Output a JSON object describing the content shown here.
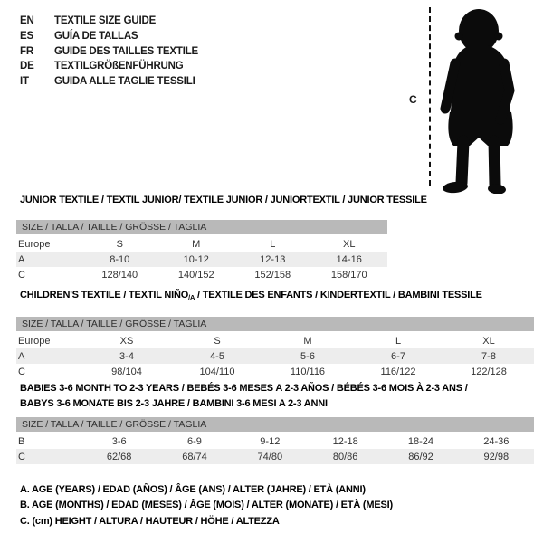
{
  "header": {
    "languages": [
      {
        "code": "EN",
        "label": "TEXTILE SIZE GUIDE"
      },
      {
        "code": "ES",
        "label": "GUÍA DE TALLAS"
      },
      {
        "code": "FR",
        "label": "GUIDE DES TAILLES TEXTILE"
      },
      {
        "code": "DE",
        "label": "TEXTILGRÖßENFÜHRUNG"
      },
      {
        "code": "IT",
        "label": "GUIDA ALLE TAGLIE TESSILI"
      }
    ]
  },
  "figure": {
    "measure_label": "C",
    "silhouette": "baby-toddler-standing"
  },
  "colors": {
    "size_bar": "#b9b9b9",
    "shaded_row": "#ededed",
    "text": "#1a1a1a"
  },
  "sections": [
    {
      "id": "junior",
      "title_lines": [
        [
          {
            "t": "JUNIOR TEXTILE / TEXTIL JUNIOR/ TEXTILE JUNIOR / JUNIORTEXTIL / JUNIOR TESSILE",
            "sub": false
          }
        ]
      ],
      "size_bar": "SIZE / TALLA / TAILLE / GRÖSSE / TAGLIA",
      "rows": [
        {
          "label": "Europe",
          "values": [
            "S",
            "M",
            "L",
            "XL"
          ],
          "shaded": false
        },
        {
          "label": "A",
          "values": [
            "8-10",
            "10-12",
            "12-13",
            "14-16"
          ],
          "shaded": true
        },
        {
          "label": "C",
          "values": [
            "128/140",
            "140/152",
            "152/158",
            "158/170"
          ],
          "shaded": false
        }
      ]
    },
    {
      "id": "children",
      "title_lines": [
        [
          {
            "t": "CHILDREN'S TEXTILE / TEXTIL NIÑO",
            "sub": false
          },
          {
            "t": "/A",
            "sub": true
          },
          {
            "t": " / TEXTILE DES ENFANTS / KINDERTEXTIL / BAMBINI TESSILE",
            "sub": false
          }
        ]
      ],
      "size_bar": "SIZE / TALLA / TAILLE / GRÖSSE / TAGLIA",
      "rows": [
        {
          "label": "Europe",
          "values": [
            "XS",
            "S",
            "M",
            "L",
            "XL"
          ],
          "shaded": false
        },
        {
          "label": "A",
          "values": [
            "3-4",
            "4-5",
            "5-6",
            "6-7",
            "7-8"
          ],
          "shaded": true
        },
        {
          "label": "C",
          "values": [
            "98/104",
            "104/110",
            "110/116",
            "116/122",
            "122/128"
          ],
          "shaded": false
        }
      ]
    },
    {
      "id": "babies",
      "title_lines": [
        [
          {
            "t": "BABIES 3-6 MONTH TO 2-3 YEARS / BEBÉS 3-6 MESES A 2-3 AÑOS / BÉBÉS 3-6 MOIS À 2-3 ANS /",
            "sub": false
          }
        ],
        [
          {
            "t": "BABYS 3-6 MONATE BIS 2-3 JAHRE / BAMBINI 3-6 MESI A 2-3 ANNI",
            "sub": false
          }
        ]
      ],
      "size_bar": "SIZE / TALLA / TAILLE / GRÖSSE / TAGLIA",
      "rows": [
        {
          "label": "B",
          "values": [
            "3-6",
            "6-9",
            "9-12",
            "12-18",
            "18-24",
            "24-36"
          ],
          "shaded": false
        },
        {
          "label": "C",
          "values": [
            "62/68",
            "68/74",
            "74/80",
            "80/86",
            "86/92",
            "92/98"
          ],
          "shaded": true
        }
      ]
    }
  ],
  "legend": [
    "A. AGE (YEARS) / EDAD (AÑOS) / ÂGE (ANS) / ALTER (JAHRE) / ETÀ (ANNI)",
    "B. AGE (MONTHS) / EDAD (MESES) / ÂGE (MOIS) / ALTER (MONATE) / ETÀ (MESI)",
    "C. (cm) HEIGHT / ALTURA / HAUTEUR / HÖHE / ALTEZZA"
  ]
}
